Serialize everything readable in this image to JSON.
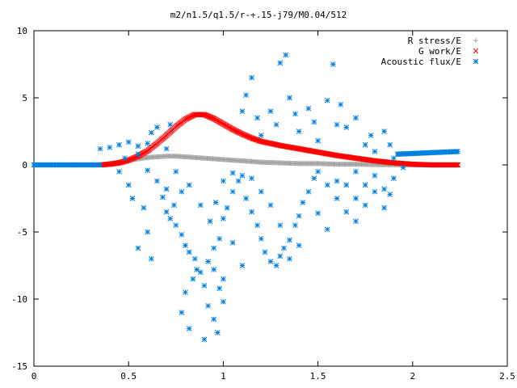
{
  "chart_data": {
    "type": "scatter",
    "title": "m2/n1.5/q1.5/r-+.15-j79/M0.04/512",
    "xlabel": "",
    "ylabel": "",
    "xlim": [
      0,
      2.5
    ],
    "ylim": [
      -15,
      10
    ],
    "x_ticks": [
      "0",
      "0.5",
      "1",
      "1.5",
      "2",
      "2.5"
    ],
    "y_ticks": [
      "10",
      "5",
      "0",
      "-5",
      "-10",
      "-15"
    ],
    "legend_position": "top-right",
    "grid": false,
    "series": [
      {
        "name": "R stress/E",
        "marker": "plus",
        "color": "#a0a0a0",
        "x_range": [
          0.35,
          2.24
        ],
        "points": [
          [
            0.35,
            0
          ],
          [
            0.4,
            0.1
          ],
          [
            0.45,
            0.2
          ],
          [
            0.5,
            0.35
          ],
          [
            0.55,
            0.45
          ],
          [
            0.6,
            0.55
          ],
          [
            0.65,
            0.6
          ],
          [
            0.7,
            0.65
          ],
          [
            0.75,
            0.65
          ],
          [
            0.8,
            0.6
          ],
          [
            0.85,
            0.55
          ],
          [
            0.9,
            0.5
          ],
          [
            0.95,
            0.45
          ],
          [
            1.0,
            0.4
          ],
          [
            1.05,
            0.35
          ],
          [
            1.1,
            0.3
          ],
          [
            1.15,
            0.25
          ],
          [
            1.2,
            0.2
          ],
          [
            1.3,
            0.15
          ],
          [
            1.4,
            0.1
          ],
          [
            1.5,
            0.1
          ],
          [
            1.6,
            0.05
          ],
          [
            1.7,
            0.05
          ],
          [
            1.8,
            0.02
          ],
          [
            1.9,
            0.01
          ],
          [
            2.0,
            0
          ],
          [
            2.24,
            0
          ]
        ]
      },
      {
        "name": "G work/E",
        "marker": "cross",
        "color": "#ff0000",
        "points": [
          [
            0.35,
            0
          ],
          [
            0.4,
            0.05
          ],
          [
            0.45,
            0.15
          ],
          [
            0.5,
            0.35
          ],
          [
            0.55,
            0.65
          ],
          [
            0.6,
            1.05
          ],
          [
            0.65,
            1.6
          ],
          [
            0.7,
            2.2
          ],
          [
            0.75,
            2.85
          ],
          [
            0.8,
            3.4
          ],
          [
            0.85,
            3.75
          ],
          [
            0.9,
            3.75
          ],
          [
            0.95,
            3.45
          ],
          [
            1.0,
            3.05
          ],
          [
            1.05,
            2.65
          ],
          [
            1.1,
            2.3
          ],
          [
            1.15,
            2.0
          ],
          [
            1.2,
            1.75
          ],
          [
            1.3,
            1.45
          ],
          [
            1.4,
            1.2
          ],
          [
            1.5,
            0.95
          ],
          [
            1.6,
            0.7
          ],
          [
            1.7,
            0.5
          ],
          [
            1.8,
            0.3
          ],
          [
            1.9,
            0.15
          ],
          [
            2.0,
            0.05
          ],
          [
            2.1,
            0
          ],
          [
            2.24,
            0
          ]
        ]
      },
      {
        "name": "Acoustic flux/E",
        "marker": "star",
        "color": "#0080e0",
        "baseline_left": [
          0,
          0.35,
          0
        ],
        "baseline_right": [
          1.92,
          2.24,
          0.8,
          1.0
        ],
        "points": [
          [
            0.35,
            1.2
          ],
          [
            0.4,
            1.3
          ],
          [
            0.45,
            1.5
          ],
          [
            0.5,
            1.7
          ],
          [
            0.55,
            1.4
          ],
          [
            0.6,
            1.6
          ],
          [
            0.62,
            2.4
          ],
          [
            0.65,
            2.8
          ],
          [
            0.7,
            1.2
          ],
          [
            0.72,
            3.0
          ],
          [
            0.75,
            -0.5
          ],
          [
            0.6,
            -0.4
          ],
          [
            0.65,
            -1.2
          ],
          [
            0.68,
            -2.4
          ],
          [
            0.7,
            -3.5
          ],
          [
            0.72,
            -4.0
          ],
          [
            0.75,
            -4.5
          ],
          [
            0.78,
            -5.2
          ],
          [
            0.8,
            -6.0
          ],
          [
            0.82,
            -6.5
          ],
          [
            0.85,
            -7.0
          ],
          [
            0.88,
            -8.0
          ],
          [
            0.9,
            -9.0
          ],
          [
            0.92,
            -10.5
          ],
          [
            0.95,
            -11.5
          ],
          [
            0.97,
            -12.5
          ],
          [
            0.9,
            -13.0
          ],
          [
            0.82,
            -12.2
          ],
          [
            0.78,
            -11.0
          ],
          [
            0.8,
            -9.5
          ],
          [
            0.84,
            -8.5
          ],
          [
            0.86,
            -7.8
          ],
          [
            0.92,
            -7.2
          ],
          [
            0.95,
            -6.2
          ],
          [
            0.98,
            -5.5
          ],
          [
            1.0,
            -4.0
          ],
          [
            1.02,
            -3.2
          ],
          [
            1.05,
            -2.0
          ],
          [
            1.08,
            -1.2
          ],
          [
            1.1,
            -0.8
          ],
          [
            1.12,
            -2.5
          ],
          [
            1.15,
            -3.5
          ],
          [
            1.18,
            -4.5
          ],
          [
            1.2,
            -5.5
          ],
          [
            1.22,
            -6.5
          ],
          [
            1.25,
            -7.2
          ],
          [
            1.28,
            -7.5
          ],
          [
            1.3,
            -6.8
          ],
          [
            1.32,
            -6.2
          ],
          [
            1.35,
            -5.6
          ],
          [
            1.38,
            -4.5
          ],
          [
            1.4,
            -3.8
          ],
          [
            1.42,
            -2.8
          ],
          [
            1.45,
            -2.0
          ],
          [
            1.48,
            -1.0
          ],
          [
            1.5,
            -0.5
          ],
          [
            1.55,
            -1.5
          ],
          [
            1.6,
            -2.5
          ],
          [
            1.65,
            -3.5
          ],
          [
            1.7,
            -2.5
          ],
          [
            1.75,
            -1.5
          ],
          [
            1.8,
            -0.8
          ],
          [
            1.85,
            -1.8
          ],
          [
            1.88,
            -2.2
          ],
          [
            0.55,
            -6.2
          ],
          [
            0.6,
            -5.0
          ],
          [
            0.62,
            -7.0
          ],
          [
            0.58,
            -3.2
          ],
          [
            0.5,
            -1.5
          ],
          [
            0.52,
            -2.5
          ],
          [
            0.45,
            -0.5
          ],
          [
            0.48,
            0.5
          ],
          [
            0.55,
            0.8
          ],
          [
            0.7,
            -1.8
          ],
          [
            0.74,
            -3.0
          ],
          [
            0.78,
            -2.0
          ],
          [
            0.82,
            -1.5
          ],
          [
            0.88,
            -3.0
          ],
          [
            0.93,
            -4.2
          ],
          [
            0.96,
            -2.8
          ],
          [
            1.0,
            -1.2
          ],
          [
            1.05,
            -0.6
          ],
          [
            1.1,
            4.0
          ],
          [
            1.12,
            5.2
          ],
          [
            1.15,
            6.5
          ],
          [
            1.18,
            3.5
          ],
          [
            1.2,
            2.2
          ],
          [
            1.25,
            4.0
          ],
          [
            1.28,
            3.0
          ],
          [
            1.3,
            7.6
          ],
          [
            1.33,
            8.2
          ],
          [
            1.35,
            5.0
          ],
          [
            1.38,
            3.8
          ],
          [
            1.4,
            2.5
          ],
          [
            1.45,
            4.2
          ],
          [
            1.48,
            3.2
          ],
          [
            1.5,
            1.8
          ],
          [
            1.55,
            4.8
          ],
          [
            1.58,
            7.5
          ],
          [
            1.6,
            3.0
          ],
          [
            1.62,
            4.5
          ],
          [
            1.65,
            2.8
          ],
          [
            1.7,
            3.5
          ],
          [
            1.75,
            1.5
          ],
          [
            1.78,
            2.2
          ],
          [
            1.8,
            1.0
          ],
          [
            1.85,
            2.5
          ],
          [
            1.88,
            1.5
          ],
          [
            1.9,
            0.5
          ],
          [
            1.95,
            -0.2
          ],
          [
            1.5,
            -3.6
          ],
          [
            1.55,
            -4.8
          ],
          [
            1.6,
            -1.2
          ],
          [
            1.7,
            -4.2
          ],
          [
            1.75,
            -3.0
          ],
          [
            1.8,
            -2.0
          ],
          [
            1.85,
            -3.2
          ],
          [
            1.9,
            -1.0
          ],
          [
            1.65,
            -1.5
          ],
          [
            1.7,
            -0.5
          ],
          [
            1.4,
            -6.0
          ],
          [
            1.35,
            -7.0
          ],
          [
            1.3,
            -4.5
          ],
          [
            1.25,
            -3.0
          ],
          [
            1.2,
            -2.0
          ],
          [
            1.15,
            -1.0
          ],
          [
            1.1,
            -7.5
          ],
          [
            1.0,
            -8.5
          ],
          [
            1.05,
            -5.8
          ],
          [
            0.98,
            -9.2
          ],
          [
            1.0,
            -10.2
          ],
          [
            0.95,
            -7.8
          ]
        ]
      }
    ]
  }
}
